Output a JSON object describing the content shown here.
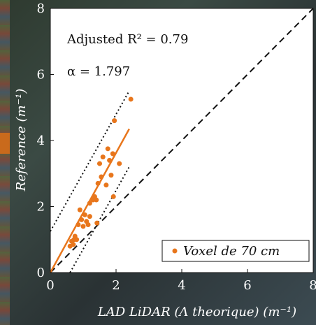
{
  "chart_data": {
    "type": "scatter",
    "xlabel": "LAD LiDAR (Λ theorique) (m⁻¹)",
    "ylabel": "Reference (m⁻¹)",
    "xlim": [
      0,
      8
    ],
    "ylim": [
      0,
      8
    ],
    "x_ticks": [
      "0",
      "2",
      "4",
      "6",
      "8"
    ],
    "y_ticks": [
      "0",
      "2",
      "4",
      "6",
      "8"
    ],
    "annotations": [
      "Adjusted R² = 0.79",
      "α = 1.797"
    ],
    "legend": {
      "label": "Voxel de 70 cm",
      "position": "bottom-right"
    },
    "series": [
      {
        "name": "Voxel de 70 cm",
        "color": "#e8761c",
        "points": [
          [
            0.6,
            0.8
          ],
          [
            0.65,
            0.95
          ],
          [
            0.7,
            0.85
          ],
          [
            0.72,
            1.0
          ],
          [
            0.75,
            1.1
          ],
          [
            0.8,
            1.0
          ],
          [
            0.85,
            1.45
          ],
          [
            0.9,
            1.9
          ],
          [
            0.95,
            1.6
          ],
          [
            1.0,
            1.4
          ],
          [
            1.05,
            1.75
          ],
          [
            1.1,
            1.55
          ],
          [
            1.15,
            1.45
          ],
          [
            1.2,
            1.7
          ],
          [
            1.2,
            2.1
          ],
          [
            1.3,
            2.2
          ],
          [
            1.35,
            2.3
          ],
          [
            1.4,
            2.2
          ],
          [
            1.42,
            1.5
          ],
          [
            1.45,
            2.7
          ],
          [
            1.5,
            3.3
          ],
          [
            1.55,
            2.9
          ],
          [
            1.6,
            3.5
          ],
          [
            1.7,
            2.65
          ],
          [
            1.75,
            3.75
          ],
          [
            1.8,
            3.4
          ],
          [
            1.85,
            2.95
          ],
          [
            1.9,
            3.6
          ],
          [
            1.92,
            2.3
          ],
          [
            1.95,
            4.6
          ],
          [
            2.1,
            3.3
          ],
          [
            2.45,
            5.25
          ]
        ]
      }
    ],
    "fit_line": {
      "color": "#e8761c",
      "x": [
        0,
        2.4
      ],
      "y": [
        0,
        4.35
      ]
    },
    "identity_line": {
      "style": "dashed",
      "color": "#111111",
      "x": [
        0,
        8
      ],
      "y": [
        0,
        8
      ]
    },
    "confidence_bounds": [
      {
        "style": "dotted",
        "x": [
          0,
          2.4
        ],
        "y": [
          1.25,
          5.5
        ]
      },
      {
        "style": "dotted",
        "x": [
          0.6,
          2.4
        ],
        "y": [
          0,
          3.2
        ]
      }
    ]
  }
}
